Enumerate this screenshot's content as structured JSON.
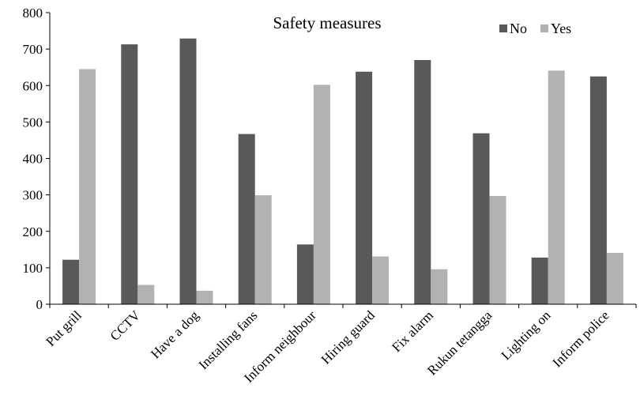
{
  "chart_data": {
    "type": "bar",
    "title": "Safety measures",
    "xlabel": "",
    "ylabel": "",
    "ylim": [
      0,
      800
    ],
    "yticks": [
      0,
      100,
      200,
      300,
      400,
      500,
      600,
      700,
      800
    ],
    "grid": false,
    "legend_position": "top-right",
    "categories": [
      "Put grill",
      "CCTV",
      "Have a dog",
      "Installing fans",
      "Inform neighbour",
      "Hiring guard",
      "Fix alarm",
      "Rukun tetangga",
      "Lighting on",
      "Inform police"
    ],
    "series": [
      {
        "name": "No",
        "color": "#595959",
        "values": [
          122,
          713,
          729,
          467,
          164,
          638,
          670,
          469,
          128,
          625
        ]
      },
      {
        "name": "Yes",
        "color": "#b2b2b2",
        "values": [
          645,
          53,
          37,
          299,
          602,
          131,
          96,
          297,
          641,
          141
        ]
      }
    ]
  }
}
